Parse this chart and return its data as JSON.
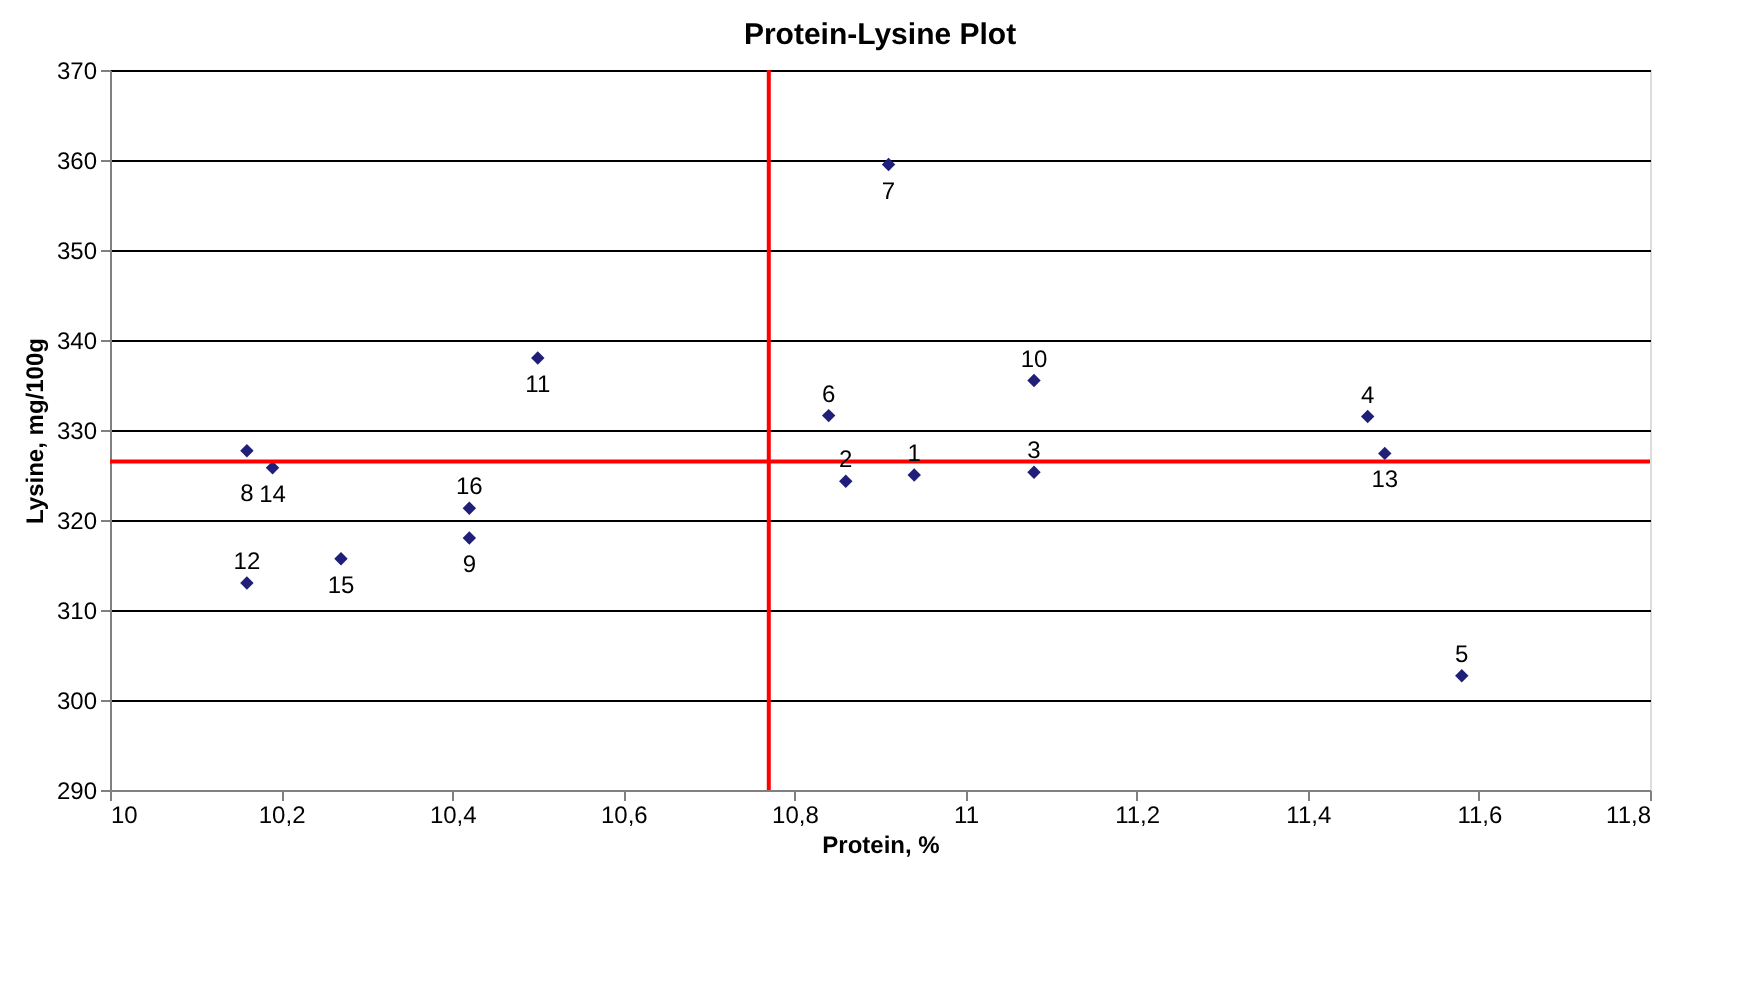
{
  "chart_data": {
    "type": "scatter",
    "title": "Protein-Lysine Plot",
    "xlabel": "Protein, %",
    "ylabel": "Lysine, mg/100g",
    "x": [
      10.94,
      10.86,
      11.08,
      11.47,
      11.58,
      10.84,
      10.91,
      10.16,
      10.42,
      11.08,
      10.5,
      10.16,
      11.49,
      10.19,
      10.27,
      10.42
    ],
    "series": [
      {
        "color": "#1f1f7a",
        "values": [
          325,
          324.3,
          325.3,
          331.5,
          302.7,
          331.6,
          359.5,
          327.7,
          318,
          335.5,
          338,
          313,
          327.4,
          325.8,
          315.7,
          321.3
        ]
      }
    ],
    "marker": "diamond",
    "grid": "y",
    "value_labels": [
      "1",
      "2",
      "3",
      "4",
      "5",
      "6",
      "7",
      "8",
      "9",
      "10",
      "11",
      "12",
      "13",
      "14",
      "15",
      "16"
    ],
    "xlim": [
      10,
      11.8
    ],
    "xticks": [
      {
        "value": 10,
        "label": "10"
      },
      {
        "value": 10.2,
        "label": "10,2"
      },
      {
        "value": 10.4,
        "label": "10,4"
      },
      {
        "value": 10.6,
        "label": "10,6"
      },
      {
        "value": 10.8,
        "label": "10,8"
      },
      {
        "value": 11,
        "label": "11"
      },
      {
        "value": 11.2,
        "label": "11,2"
      },
      {
        "value": 11.4,
        "label": "11,4"
      },
      {
        "value": 11.6,
        "label": "11,6"
      },
      {
        "value": 11.8,
        "label": "11,8"
      }
    ],
    "ylim": [
      290,
      370
    ],
    "yticks": [
      290,
      300,
      310,
      320,
      330,
      340,
      350,
      360,
      370
    ],
    "ref_lines": [
      {
        "axis": "x",
        "value": 10.77,
        "color": "#ff0000"
      },
      {
        "axis": "y",
        "value": 326.5,
        "color": "#ff0000"
      }
    ]
  }
}
